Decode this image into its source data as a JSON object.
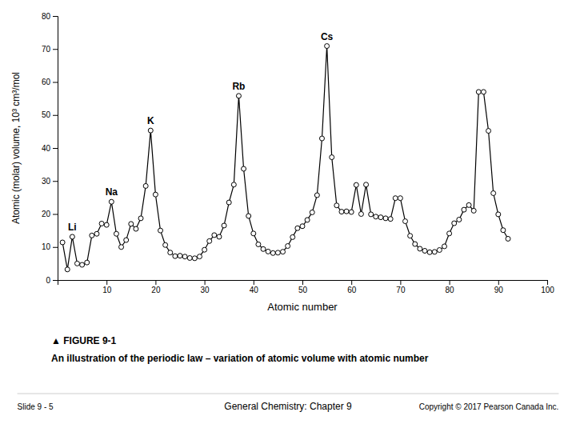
{
  "chart_data": {
    "type": "line",
    "title": "▲   FIGURE 9-1",
    "subtitle": "An illustration of the periodic law – variation of atomic volume with atomic number",
    "x": [
      1,
      2,
      3,
      4,
      5,
      6,
      7,
      8,
      9,
      10,
      11,
      12,
      13,
      14,
      15,
      16,
      17,
      18,
      19,
      20,
      21,
      22,
      23,
      24,
      25,
      26,
      27,
      28,
      29,
      30,
      31,
      32,
      33,
      34,
      35,
      36,
      37,
      38,
      39,
      40,
      41,
      42,
      43,
      44,
      45,
      46,
      47,
      48,
      49,
      50,
      51,
      52,
      53,
      54,
      55,
      56,
      57,
      58,
      59,
      60,
      61,
      62,
      63,
      64,
      65,
      66,
      67,
      68,
      69,
      70,
      71,
      72,
      73,
      74,
      75,
      76,
      77,
      78,
      79,
      80,
      81,
      82,
      83,
      84,
      85,
      86,
      87,
      88,
      89,
      90,
      91,
      92
    ],
    "values": [
      11.4,
      3.2,
      13.1,
      5.0,
      4.6,
      5.3,
      13.5,
      14.0,
      17.1,
      16.7,
      23.7,
      14.0,
      10.0,
      12.1,
      17.0,
      15.5,
      18.7,
      28.5,
      45.3,
      25.9,
      15.0,
      10.6,
      8.32,
      7.23,
      7.35,
      7.09,
      6.67,
      6.59,
      7.11,
      9.16,
      11.8,
      13.6,
      13.1,
      16.5,
      23.5,
      28.9,
      55.8,
      33.7,
      19.4,
      14.1,
      10.8,
      9.38,
      8.63,
      8.17,
      8.28,
      8.56,
      10.3,
      13.0,
      15.7,
      16.3,
      18.2,
      20.5,
      25.7,
      42.9,
      70.9,
      37.2,
      22.6,
      20.7,
      20.8,
      20.6,
      28.8,
      20.0,
      28.9,
      19.9,
      19.2,
      19.0,
      18.7,
      18.5,
      24.8,
      24.8,
      17.8,
      13.4,
      10.9,
      9.47,
      8.85,
      8.42,
      8.52,
      9.09,
      10.2,
      14.1,
      17.2,
      18.3,
      21.3,
      22.7,
      21.0,
      57.0,
      57.0,
      45.2,
      26.3,
      19.9,
      15.1,
      12.5
    ],
    "color": "#000000",
    "marker": "circle",
    "annotations": [
      {
        "text": "Li",
        "x": 3,
        "y": 13.1
      },
      {
        "text": "Na",
        "x": 11,
        "y": 23.7
      },
      {
        "text": "K",
        "x": 19,
        "y": 45.3
      },
      {
        "text": "Rb",
        "x": 37,
        "y": 55.8
      },
      {
        "text": "Cs",
        "x": 55,
        "y": 70.9
      }
    ],
    "xlim": [
      0,
      100
    ],
    "ylim": [
      0,
      80
    ],
    "xticks": [
      10,
      20,
      30,
      40,
      50,
      60,
      70,
      80,
      90,
      100
    ],
    "yticks": [
      0,
      10,
      20,
      30,
      40,
      50,
      60,
      70,
      80
    ],
    "xlabel": "Atomic number",
    "ylabel": "Atomic (molar) volume, 10³ cm³/mol",
    "footer": [
      "Slide 9 - 5",
      "General Chemistry: Chapter 9",
      "Copyright © 2017 Pearson Canada Inc."
    ]
  }
}
